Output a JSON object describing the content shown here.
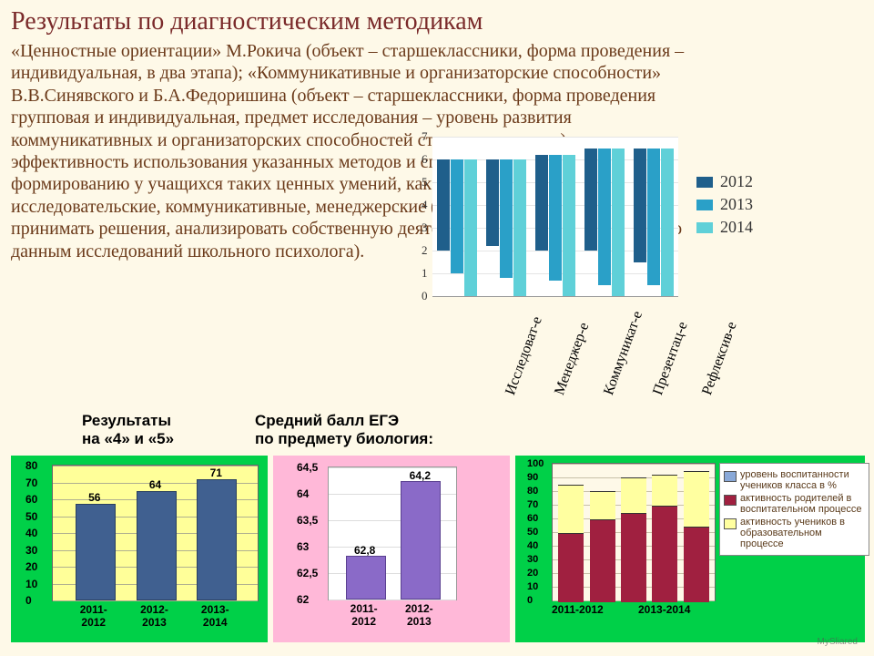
{
  "title": "Результаты по диагностическим методикам",
  "paragraph": "«Ценностные ориентации» М.Рокича (объект – старшеклассники, форма проведения – индивидуальная, в два этапа); «Коммуникативные и организаторские способности» В.В.Синявского и Б.А.Федоришина (объект – старшеклассники, форма проведения групповая и индивидуальная, предмет исследования – уровень развития коммуникативных и организаторских способностей старшеклассников) показали эффективность использования указанных методов и способов. Они способствовали формированию у учащихся таких  ценных умений, как рефлексивные, исследовательские, коммуникативные, менеджерские (планировать деятельность, принимать решения, анализировать собственную деятельность), презентационные (по данным исследований школьного психолога).",
  "sub1": "Результаты\nна «4» и «5»",
  "sub2": "Средний балл ЕГЭ\nпо предмету биология:",
  "top_right_chart": {
    "type": "grouped-bar",
    "ylim": [
      0,
      7
    ],
    "ytick_step": 1,
    "categories": [
      "Исследоват-е",
      "Менеджер-е",
      "Коммуникат-е",
      "Презентац-е",
      "Рефлексив-е"
    ],
    "series": [
      {
        "name": "2012",
        "color": "#1f5f8b",
        "values": [
          4,
          3.8,
          4.2,
          4.5,
          5
        ]
      },
      {
        "name": "2013",
        "color": "#2aa0c8",
        "values": [
          5,
          5.2,
          5.5,
          6,
          6
        ]
      },
      {
        "name": "2014",
        "color": "#5fd0d8",
        "values": [
          6,
          6,
          6.2,
          6.5,
          6.5
        ]
      }
    ],
    "background": "#ffffff",
    "grid": "#e5e5e5",
    "label_fontsize": 16
  },
  "chart1": {
    "type": "bar",
    "background": "#00d048",
    "plot_bg": "#ffff99",
    "ylim": [
      0,
      80
    ],
    "ytick_step": 10,
    "categories": [
      "2011-\n2012",
      "2012-\n2013",
      "2013-\n2014"
    ],
    "values": [
      56,
      64,
      71
    ],
    "bar_color": "#406090",
    "grid": "#b0b090"
  },
  "chart2": {
    "type": "bar",
    "background": "#ffb8d8",
    "plot_bg": "#ffffff",
    "ylim": [
      62,
      64.5
    ],
    "ytick_step": 0.5,
    "categories": [
      "2011-\n2012",
      "2012-\n2013"
    ],
    "values": [
      62.8,
      64.2
    ],
    "bar_color": "#8a6ac8",
    "grid": "#dddddd"
  },
  "chart3": {
    "type": "stacked-bar",
    "background": "#00d048",
    "plot_bg": "#fef9e8",
    "ylim": [
      0,
      100
    ],
    "ytick_step": 10,
    "x_labels": [
      "2011-2012",
      "2013-2014"
    ],
    "columns": [
      {
        "segments": [
          {
            "v": 50,
            "c": "#a02040"
          },
          {
            "v": 35,
            "c": "#ffffa0"
          }
        ]
      },
      {
        "segments": [
          {
            "v": 60,
            "c": "#a02040"
          },
          {
            "v": 20,
            "c": "#ffffa0"
          }
        ]
      },
      {
        "segments": [
          {
            "v": 65,
            "c": "#a02040"
          },
          {
            "v": 25,
            "c": "#ffffa0"
          }
        ]
      },
      {
        "segments": [
          {
            "v": 70,
            "c": "#a02040"
          },
          {
            "v": 22,
            "c": "#ffffa0"
          }
        ]
      },
      {
        "segments": [
          {
            "v": 55,
            "c": "#a02040"
          },
          {
            "v": 40,
            "c": "#ffffa0"
          }
        ]
      }
    ],
    "legend": [
      {
        "color": "#88a8d8",
        "label": "уровень воспитанности учеников класса в %"
      },
      {
        "color": "#a02040",
        "label": "активность родителей в воспитательном процессе"
      },
      {
        "color": "#ffffa0",
        "label": "активность учеников в образовательном процессе"
      }
    ]
  },
  "watermark": "MySliared"
}
